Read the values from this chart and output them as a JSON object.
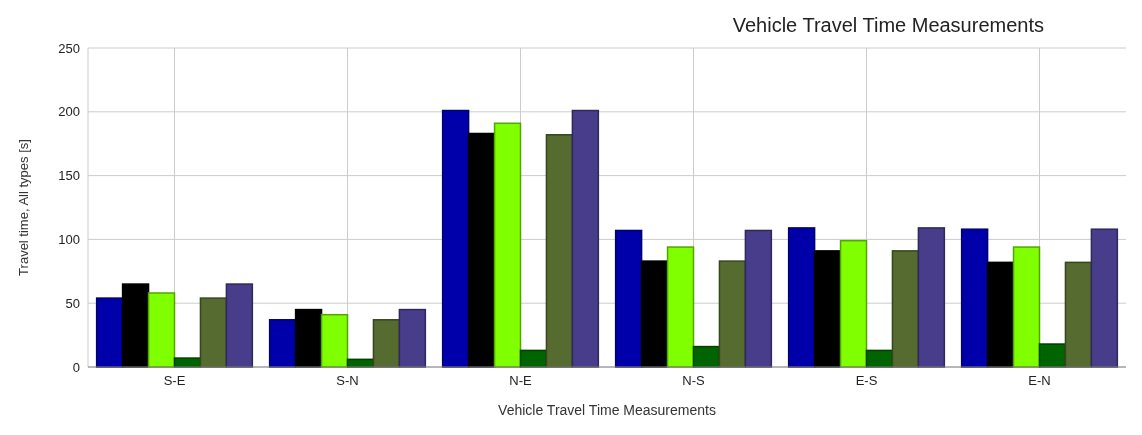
{
  "chart_data": {
    "type": "bar",
    "title": "Vehicle Travel Time Measurements",
    "xlabel": "Vehicle Travel Time Measurements",
    "ylabel": "Travel time, All types [s]",
    "categories": [
      "S-E",
      "S-N",
      "N-E",
      "N-S",
      "E-S",
      "E-N"
    ],
    "series": [
      {
        "color": "#0000aa",
        "values": [
          54,
          37,
          201,
          107,
          109,
          108
        ]
      },
      {
        "color": "#000000",
        "values": [
          65,
          45,
          183,
          83,
          91,
          82
        ]
      },
      {
        "color": "#7fff00",
        "values": [
          58,
          41,
          191,
          94,
          99,
          94
        ]
      },
      {
        "color": "#006400",
        "values": [
          7,
          6,
          13,
          16,
          13,
          18
        ]
      },
      {
        "color": "#556b2f",
        "values": [
          54,
          37,
          182,
          83,
          91,
          82
        ]
      },
      {
        "color": "#483d8b",
        "values": [
          65,
          45,
          201,
          107,
          109,
          108
        ]
      }
    ],
    "ylim": [
      0,
      250
    ],
    "yticks": [
      0,
      50,
      100,
      150,
      200,
      250
    ],
    "grid": true
  }
}
